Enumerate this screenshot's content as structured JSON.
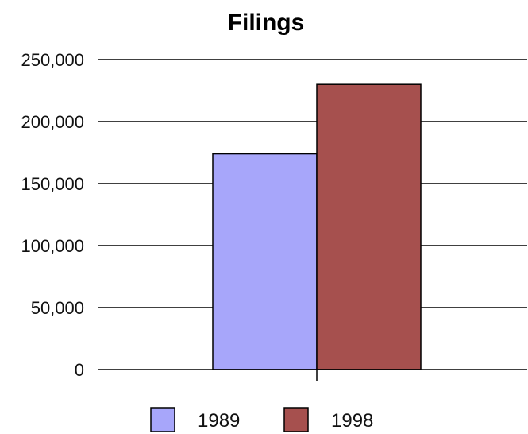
{
  "chart_data": {
    "type": "bar",
    "title": "Filings",
    "xlabel": "",
    "ylabel": "",
    "categories": [
      ""
    ],
    "series": [
      {
        "name": "1989",
        "values": [
          174000
        ],
        "color": "#a7a6fa"
      },
      {
        "name": "1998",
        "values": [
          230000
        ],
        "color": "#a6504e"
      }
    ],
    "ylim": [
      0,
      250000
    ],
    "yticks": [
      0,
      50000,
      100000,
      150000,
      200000,
      250000
    ],
    "ytick_labels": [
      "0",
      "50,000",
      "100,000",
      "150,000",
      "200,000",
      "250,000"
    ],
    "grid": true,
    "legend_position": "bottom"
  }
}
